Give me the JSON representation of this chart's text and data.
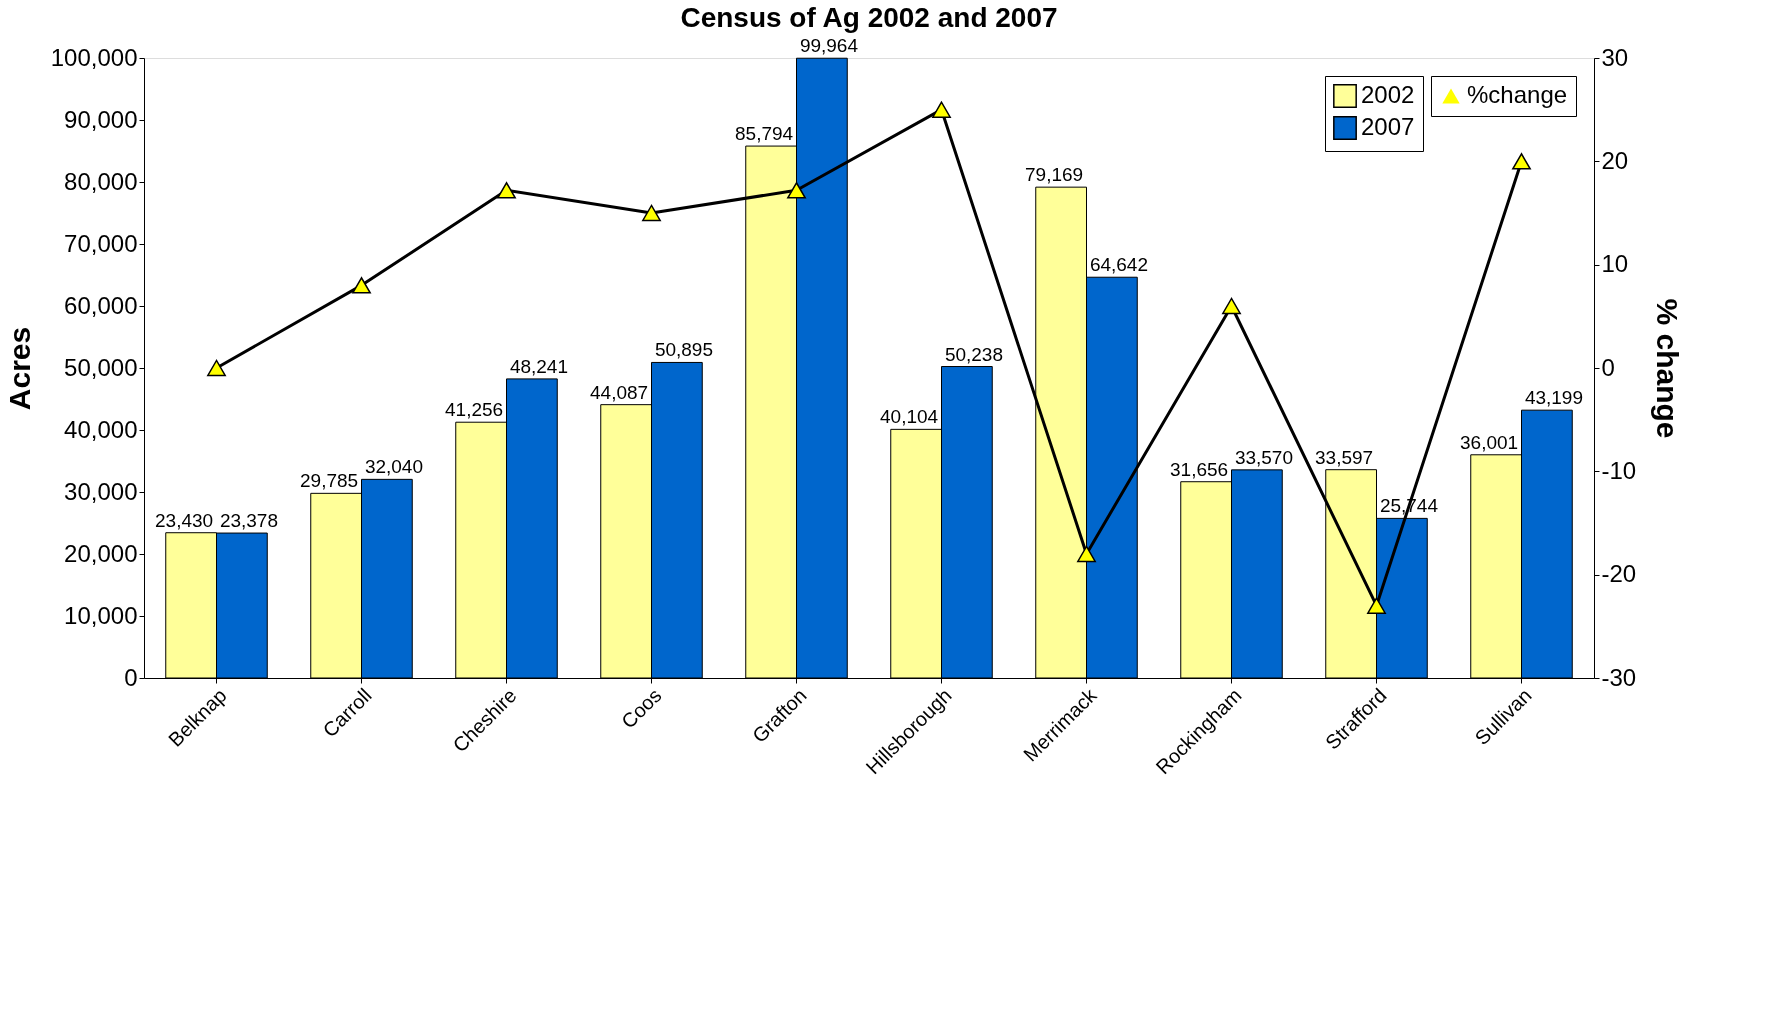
{
  "chart_data": {
    "type": "bar",
    "title": "Census of Ag 2002 and 2007",
    "ylabel": "Acres",
    "y2label": "% change",
    "categories": [
      "Belknap",
      "Carroll",
      "Cheshire",
      "Coos",
      "Grafton",
      "Hillsborough",
      "Merrimack",
      "Rockingham",
      "Strafford",
      "Sullivan"
    ],
    "series": [
      {
        "name": "2002",
        "color": "#ffff99",
        "values": [
          23430,
          29785,
          41256,
          44087,
          85794,
          40104,
          79169,
          31656,
          33597,
          36001
        ],
        "value_labels": [
          "23,430",
          "29,785",
          "41,256",
          "44,087",
          "85,794",
          "40,104",
          "79,169",
          "31,656",
          "33,597",
          "36,001"
        ]
      },
      {
        "name": "2007",
        "color": "#0066cc",
        "values": [
          23378,
          32040,
          48241,
          50895,
          99964,
          50238,
          64642,
          33570,
          25744,
          43199
        ],
        "value_labels": [
          "23,378",
          "32,040",
          "48,241",
          "50,895",
          "99,964",
          "50,238",
          "64,642",
          "33,570",
          "25,744",
          "43,199"
        ]
      },
      {
        "name": "%change",
        "type": "line",
        "axis": "y2",
        "color": "#000000",
        "values": [
          0,
          8,
          17.2,
          15,
          17.2,
          25,
          -18,
          6,
          -23,
          20
        ]
      }
    ],
    "ylim": [
      0,
      100000
    ],
    "yticks": [
      0,
      {
        "value": 10000,
        "label": "10,000"
      },
      {
        "value": 20000,
        "label": "20,000"
      },
      {
        "value": 30000,
        "label": "30,000"
      },
      {
        "value": 40000,
        "label": "40,000"
      },
      {
        "value": 50000,
        "label": "50,000"
      },
      {
        "value": 60000,
        "label": "60,000"
      },
      {
        "value": 70000,
        "label": "70,000"
      },
      {
        "value": 80000,
        "label": "80,000"
      },
      {
        "value": 90000,
        "label": "90,000"
      },
      {
        "value": 100000,
        "label": "100,000"
      }
    ],
    "y2lim": [
      -30,
      30
    ],
    "y2ticks": [
      -30,
      -20,
      -10,
      0,
      10,
      20,
      30
    ],
    "legend": "top right",
    "marker": "triangle",
    "grid": false
  }
}
